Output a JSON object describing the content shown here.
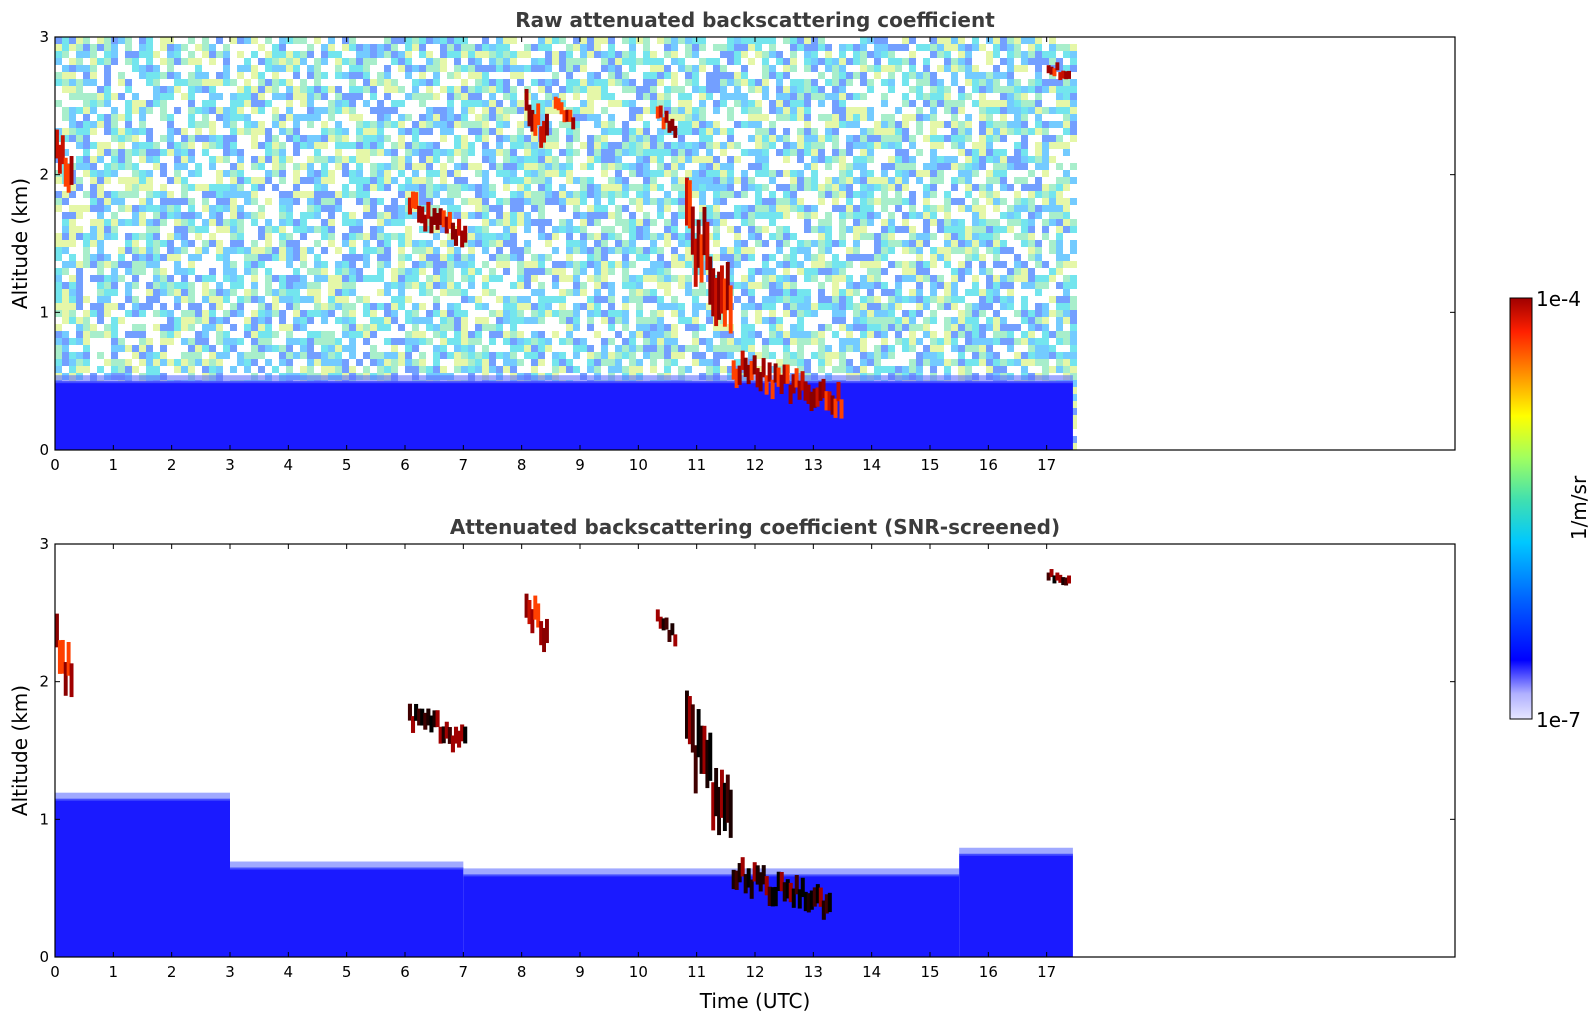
{
  "chart_data": [
    {
      "type": "heatmap",
      "title": "Raw attenuated backscattering coefficient",
      "xlabel": "",
      "ylabel": "Altitude (km)",
      "xlim": [
        0,
        24
      ],
      "ylim": [
        0,
        3
      ],
      "x_ticks": [
        "0",
        "1",
        "2",
        "3",
        "4",
        "5",
        "6",
        "7",
        "8",
        "9",
        "10",
        "11",
        "12",
        "13",
        "14",
        "15",
        "16",
        "17"
      ],
      "y_ticks": [
        "0",
        "1",
        "2",
        "3"
      ],
      "data_extent_hours": [
        0,
        17.45
      ],
      "features": [
        {
          "kind": "near_surface_layer",
          "from_h": 0,
          "to_h": 17.45,
          "top_km": 0.5,
          "level": "low"
        },
        {
          "kind": "cloud",
          "from_h": 0.0,
          "to_h": 0.3,
          "alt_km": [
            1.9,
            2.5
          ],
          "level": "high"
        },
        {
          "kind": "cloud",
          "from_h": 6.05,
          "to_h": 7.05,
          "alt_km": [
            1.55,
            1.9
          ],
          "level": "high"
        },
        {
          "kind": "cloud",
          "from_h": 8.05,
          "to_h": 8.45,
          "alt_km": [
            2.25,
            2.7
          ],
          "level": "high"
        },
        {
          "kind": "cloud",
          "from_h": 8.55,
          "to_h": 8.9,
          "alt_km": [
            2.35,
            2.6
          ],
          "level": "high"
        },
        {
          "kind": "cloud",
          "from_h": 10.3,
          "to_h": 10.65,
          "alt_km": [
            2.3,
            2.55
          ],
          "level": "high"
        },
        {
          "kind": "cloud",
          "from_h": 10.8,
          "to_h": 11.6,
          "alt_km": [
            1.0,
            2.0
          ],
          "level": "high"
        },
        {
          "kind": "cloud",
          "from_h": 11.6,
          "to_h": 13.5,
          "alt_km": [
            0.35,
            0.75
          ],
          "level": "high"
        },
        {
          "kind": "cloud",
          "from_h": 17.0,
          "to_h": 17.4,
          "alt_km": [
            2.7,
            2.85
          ],
          "level": "high"
        }
      ]
    },
    {
      "type": "heatmap",
      "title": "Attenuated backscattering coefficient (SNR-screened)",
      "xlabel": "Time (UTC)",
      "ylabel": "Altitude (km)",
      "xlim": [
        0,
        24
      ],
      "ylim": [
        0,
        3
      ],
      "x_ticks": [
        "0",
        "1",
        "2",
        "3",
        "4",
        "5",
        "6",
        "7",
        "8",
        "9",
        "10",
        "11",
        "12",
        "13",
        "14",
        "15",
        "16",
        "17"
      ],
      "y_ticks": [
        "0",
        "1",
        "2",
        "3"
      ],
      "data_extent_hours": [
        0,
        17.45
      ],
      "features": [
        {
          "kind": "boundary_layer",
          "from_h": 0,
          "to_h": 3,
          "top_km": 1.15,
          "level": "low"
        },
        {
          "kind": "boundary_layer",
          "from_h": 3,
          "to_h": 7,
          "top_km": 0.65,
          "level": "low"
        },
        {
          "kind": "boundary_layer",
          "from_h": 7,
          "to_h": 15.5,
          "top_km": 0.6,
          "level": "low"
        },
        {
          "kind": "boundary_layer",
          "from_h": 15.5,
          "to_h": 17.45,
          "top_km": 0.75,
          "level": "low"
        },
        {
          "kind": "cloud",
          "from_h": 0.0,
          "to_h": 0.3,
          "alt_km": [
            1.9,
            2.6
          ],
          "level": "high"
        },
        {
          "kind": "cloud",
          "from_h": 6.05,
          "to_h": 7.05,
          "alt_km": [
            1.55,
            1.9
          ],
          "level": "saturated"
        },
        {
          "kind": "cloud",
          "from_h": 8.05,
          "to_h": 8.45,
          "alt_km": [
            2.25,
            2.75
          ],
          "level": "high"
        },
        {
          "kind": "cloud",
          "from_h": 10.3,
          "to_h": 10.65,
          "alt_km": [
            2.3,
            2.55
          ],
          "level": "saturated"
        },
        {
          "kind": "cloud",
          "from_h": 10.8,
          "to_h": 11.6,
          "alt_km": [
            1.0,
            2.0
          ],
          "level": "saturated"
        },
        {
          "kind": "cloud",
          "from_h": 11.6,
          "to_h": 13.3,
          "alt_km": [
            0.35,
            0.75
          ],
          "level": "saturated"
        },
        {
          "kind": "cloud",
          "from_h": 17.0,
          "to_h": 17.4,
          "alt_km": [
            2.7,
            2.85
          ],
          "level": "saturated"
        }
      ]
    }
  ],
  "colorbar": {
    "label": "1/m/sr",
    "max_label": "1e-4",
    "min_label": "1e-7",
    "scale": "log",
    "colors": [
      "#e6e6ff",
      "#b0b0ff",
      "#0000ff",
      "#0060ff",
      "#00c8ff",
      "#40e0b0",
      "#a0ff60",
      "#ffff00",
      "#ff9000",
      "#ff2000",
      "#a00000"
    ]
  }
}
